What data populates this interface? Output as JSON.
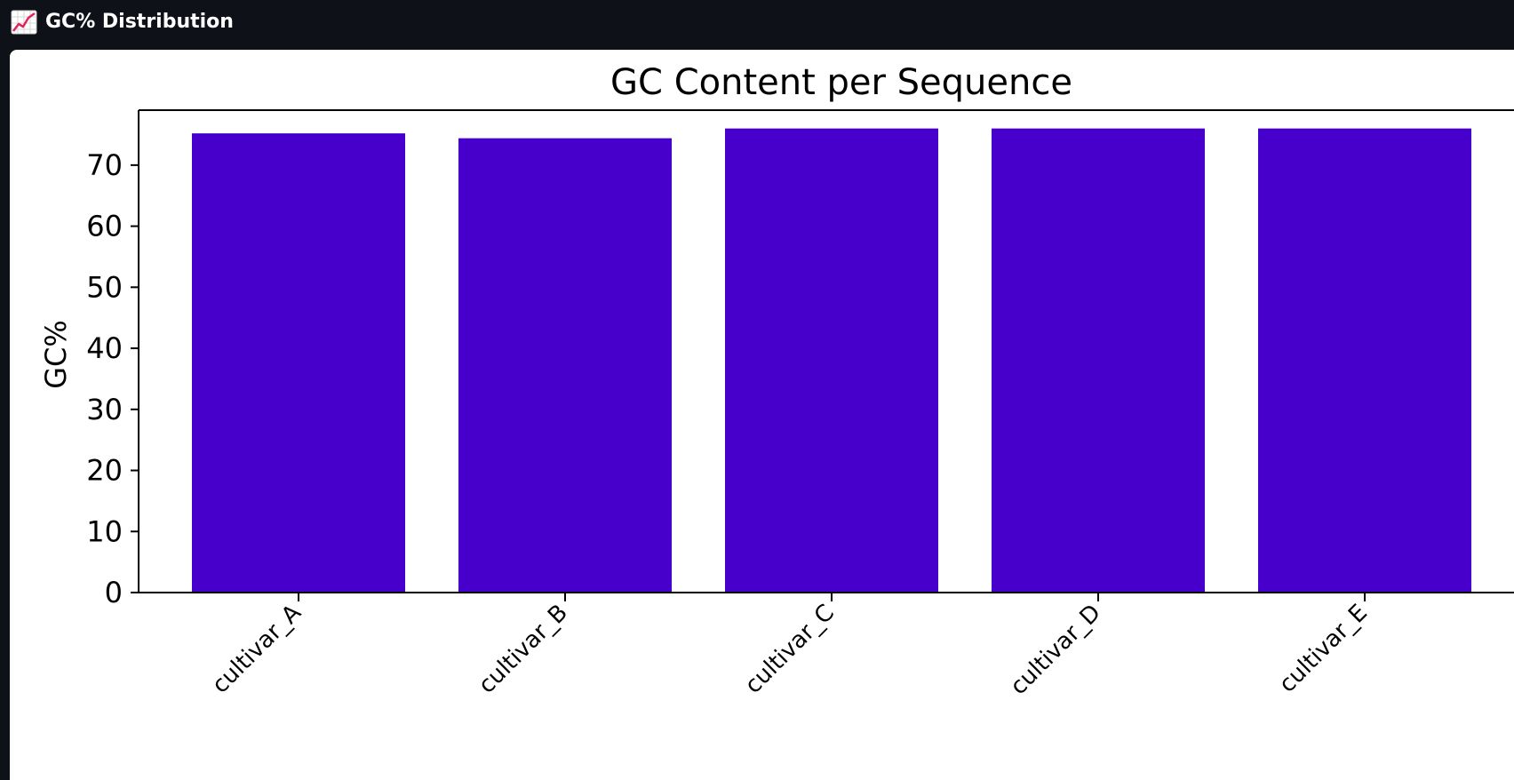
{
  "window": {
    "title": "GC% Distribution",
    "icon": "chart-increasing-icon"
  },
  "chart_data": {
    "type": "bar",
    "title": "GC Content per Sequence",
    "xlabel": "",
    "ylabel": "GC%",
    "categories": [
      "cultivar_A",
      "cultivar_B",
      "cultivar_C",
      "cultivar_D",
      "cultivar_E"
    ],
    "values": [
      75.2,
      74.4,
      76.0,
      76.0,
      76.0
    ],
    "ylim": [
      0,
      79
    ],
    "yticks": [
      0,
      10,
      20,
      30,
      40,
      50,
      60,
      70
    ],
    "bar_color": "#4700cc",
    "grid": false
  },
  "colors": {
    "background": "#0e1117",
    "panel": "#ffffff",
    "bar": "#4700cc"
  }
}
